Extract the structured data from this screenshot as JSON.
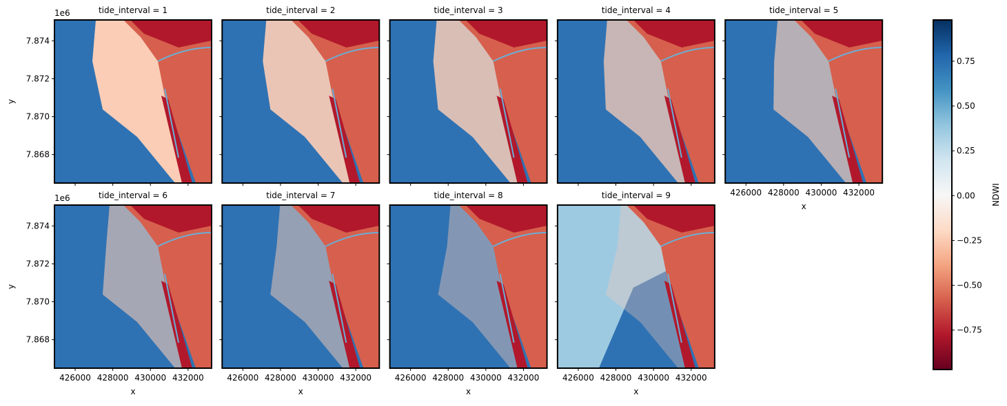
{
  "chart_data": {
    "type": "image-facets",
    "facet_titles": [
      "tide_interval = 1",
      "tide_interval = 2",
      "tide_interval = 3",
      "tide_interval = 4",
      "tide_interval = 5",
      "tide_interval = 6",
      "tide_interval = 7",
      "tide_interval = 8",
      "tide_interval = 9"
    ],
    "columns": 5,
    "xlabel": "x",
    "ylabel": "y",
    "y_offset_label": "1e6",
    "xlim": [
      424900,
      433250
    ],
    "xticks": [
      426000,
      428000,
      430000,
      432000
    ],
    "ylim": [
      7866500,
      7875100
    ],
    "yticks": [
      {
        "value": 7868000,
        "label": "7.868"
      },
      {
        "value": 7870000,
        "label": "7.870"
      },
      {
        "value": 7872000,
        "label": "7.872"
      },
      {
        "value": 7874000,
        "label": "7.874"
      }
    ],
    "colorbar": {
      "label": "NDWI",
      "cmap": "RdBu",
      "lim": [
        -0.97,
        0.98
      ],
      "ticks": [
        {
          "value": -0.75,
          "label": "−0.75"
        },
        {
          "value": -0.5,
          "label": "−0.50"
        },
        {
          "value": -0.25,
          "label": "−0.25"
        },
        {
          "value": 0,
          "label": "0.00"
        },
        0.25,
        {
          "value": 0.5,
          "label": "0.50"
        },
        0.75
      ]
    }
  }
}
